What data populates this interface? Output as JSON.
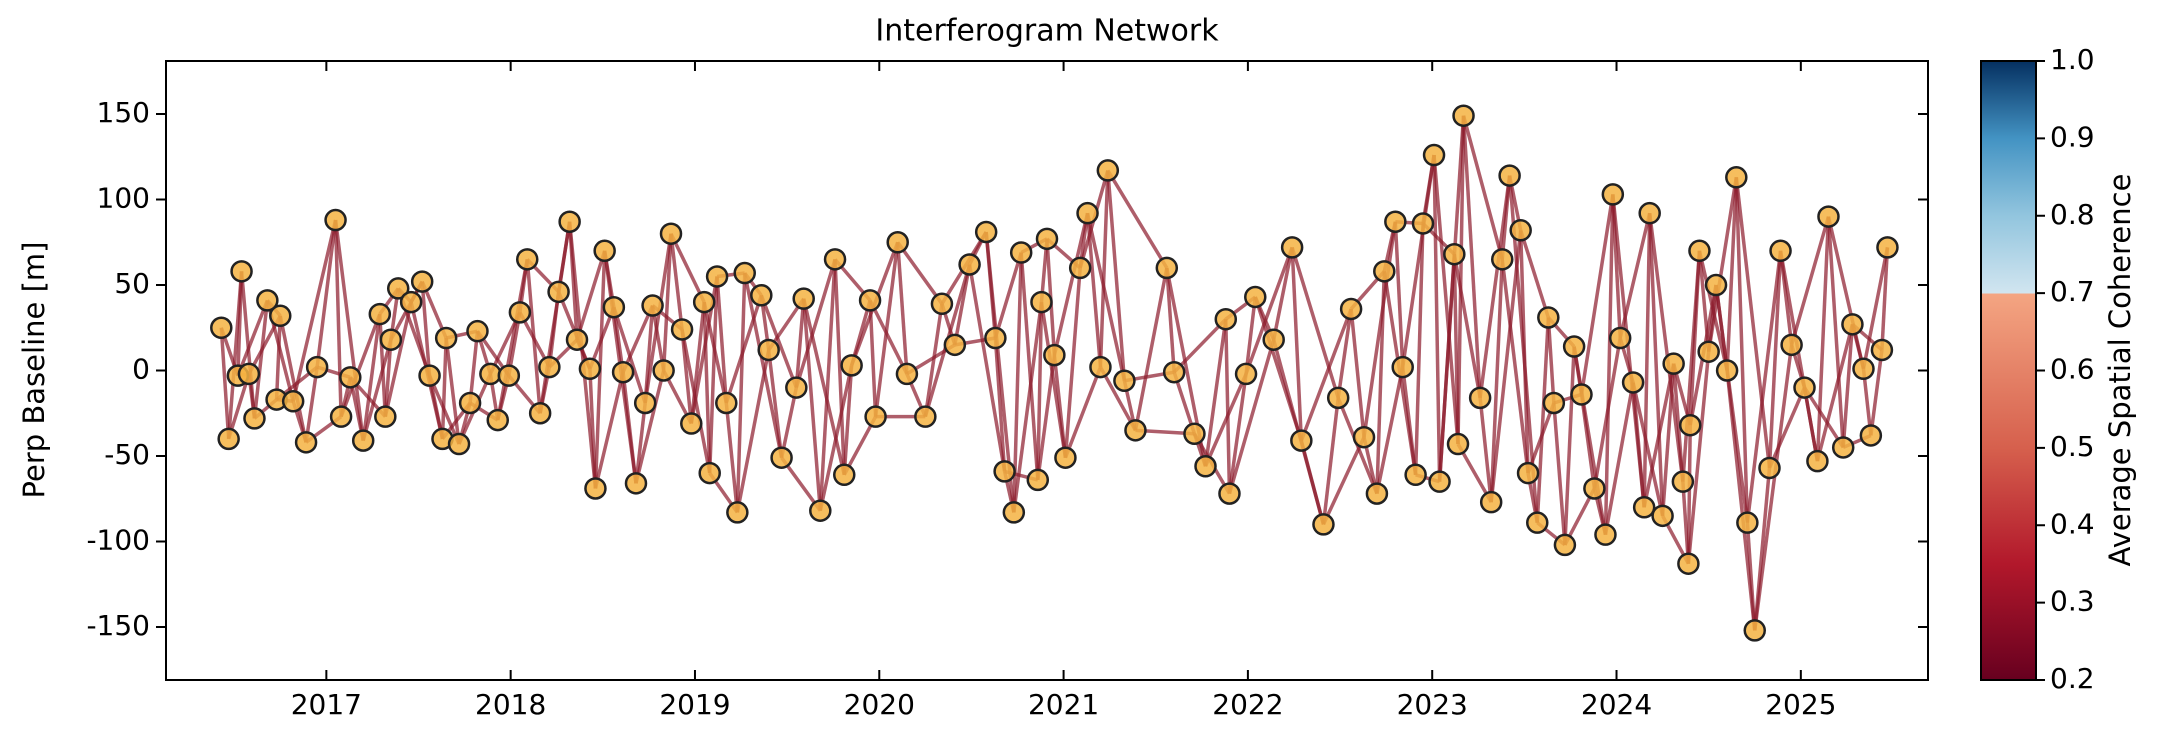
{
  "chart_data": {
    "type": "network",
    "title": "Interferogram Network",
    "ylabel": "Perp Baseline [m]",
    "xlim": [
      2016.13,
      2025.69
    ],
    "xticks": [
      2017,
      2018,
      2019,
      2020,
      2021,
      2022,
      2023,
      2024,
      2025
    ],
    "ylim": [
      -181,
      181
    ],
    "yticks": [
      -150,
      -100,
      -50,
      0,
      50,
      100,
      150
    ],
    "node_color": "#f5b342",
    "edge_color": "#8b1a2b",
    "x": [
      2016.43,
      2016.47,
      2016.54,
      2016.52,
      2016.58,
      2016.61,
      2016.68,
      2016.75,
      2016.73,
      2016.82,
      2016.89,
      2016.95,
      2017.05,
      2017.08,
      2017.13,
      2017.2,
      2017.29,
      2017.32,
      2017.35,
      2017.39,
      2017.46,
      2017.52,
      2017.56,
      2017.63,
      2017.65,
      2017.72,
      2017.78,
      2017.82,
      2017.89,
      2017.93,
      2017.99,
      2018.05,
      2018.09,
      2018.16,
      2018.21,
      2018.26,
      2018.32,
      2018.36,
      2018.43,
      2018.46,
      2018.51,
      2018.56,
      2018.61,
      2018.68,
      2018.73,
      2018.77,
      2018.83,
      2018.87,
      2018.93,
      2018.98,
      2019.05,
      2019.08,
      2019.12,
      2019.17,
      2019.23,
      2019.27,
      2019.36,
      2019.4,
      2019.47,
      2019.55,
      2019.59,
      2019.68,
      2019.76,
      2019.81,
      2019.85,
      2019.95,
      2019.98,
      2020.1,
      2020.15,
      2020.25,
      2020.34,
      2020.41,
      2020.49,
      2020.58,
      2020.63,
      2020.68,
      2020.73,
      2020.77,
      2020.86,
      2020.88,
      2020.91,
      2020.95,
      2021.01,
      2021.09,
      2021.13,
      2021.2,
      2021.24,
      2021.33,
      2021.39,
      2021.56,
      2021.6,
      2021.71,
      2021.77,
      2021.88,
      2021.9,
      2021.99,
      2022.04,
      2022.14,
      2022.24,
      2022.29,
      2022.41,
      2022.49,
      2022.56,
      2022.63,
      2022.7,
      2022.74,
      2022.8,
      2022.84,
      2022.91,
      2022.95,
      2023.01,
      2023.04,
      2023.12,
      2023.14,
      2023.17,
      2023.26,
      2023.32,
      2023.38,
      2023.42,
      2023.48,
      2023.52,
      2023.57,
      2023.63,
      2023.66,
      2023.72,
      2023.77,
      2023.81,
      2023.88,
      2023.94,
      2023.98,
      2024.02,
      2024.09,
      2024.15,
      2024.18,
      2024.25,
      2024.31,
      2024.36,
      2024.39,
      2024.4,
      2024.45,
      2024.5,
      2024.54,
      2024.6,
      2024.65,
      2024.71,
      2024.75,
      2024.83,
      2024.89,
      2024.95,
      2025.02,
      2025.09,
      2025.15,
      2025.23,
      2025.28,
      2025.34,
      2025.38,
      2025.44,
      2025.47
    ],
    "values": [
      25,
      -40,
      58,
      -3,
      -2,
      -28,
      41,
      32,
      -17,
      -18,
      -42,
      2,
      88,
      -27,
      -4,
      -41,
      33,
      -27,
      18,
      48,
      40,
      52,
      -3,
      -40,
      19,
      -43,
      -19,
      23,
      -2,
      -29,
      -3,
      34,
      65,
      -25,
      2,
      46,
      87,
      18,
      1,
      -69,
      70,
      37,
      -1,
      -66,
      -19,
      38,
      0,
      80,
      24,
      -31,
      40,
      -60,
      55,
      -19,
      -83,
      57,
      44,
      12,
      -51,
      -10,
      42,
      -82,
      65,
      -61,
      3,
      41,
      -27,
      75,
      -2,
      -27,
      39,
      15,
      62,
      81,
      19,
      -59,
      -83,
      69,
      -64,
      40,
      77,
      9,
      -51,
      60,
      92,
      2,
      117,
      -6,
      -35,
      60,
      -1,
      -37,
      -56,
      30,
      -72,
      -2,
      43,
      18,
      72,
      -41,
      -90,
      -16,
      36,
      -39,
      -72,
      58,
      87,
      2,
      -61,
      86,
      126,
      -65,
      68,
      -43,
      149,
      -16,
      -77,
      65,
      114,
      82,
      -60,
      -89,
      31,
      -19,
      -102,
      14,
      -14,
      -69,
      -96,
      103,
      19,
      -7,
      -80,
      92,
      -85,
      4,
      -65,
      -113,
      -32,
      70,
      11,
      50,
      0,
      113,
      -89,
      -152,
      -57,
      70,
      15,
      -10,
      -53,
      90,
      -45,
      27,
      1,
      -38,
      12,
      72
    ],
    "edges": [
      [
        0,
        1
      ],
      [
        0,
        3
      ],
      [
        1,
        2
      ],
      [
        1,
        4
      ],
      [
        2,
        3
      ],
      [
        2,
        5
      ],
      [
        3,
        4
      ],
      [
        3,
        6
      ],
      [
        4,
        5
      ],
      [
        4,
        7
      ],
      [
        5,
        6
      ],
      [
        5,
        8
      ],
      [
        6,
        7
      ],
      [
        6,
        9
      ],
      [
        7,
        8
      ],
      [
        7,
        10
      ],
      [
        8,
        9
      ],
      [
        8,
        11
      ],
      [
        9,
        10
      ],
      [
        9,
        12
      ],
      [
        10,
        11
      ],
      [
        10,
        13
      ],
      [
        11,
        12
      ],
      [
        11,
        14
      ],
      [
        12,
        13
      ],
      [
        12,
        15
      ],
      [
        13,
        14
      ],
      [
        13,
        16
      ],
      [
        14,
        15
      ],
      [
        14,
        17
      ],
      [
        15,
        16
      ],
      [
        15,
        18
      ],
      [
        16,
        17
      ],
      [
        16,
        19
      ],
      [
        17,
        18
      ],
      [
        17,
        20
      ],
      [
        18,
        19
      ],
      [
        18,
        21
      ],
      [
        19,
        20
      ],
      [
        19,
        22
      ],
      [
        20,
        21
      ],
      [
        20,
        23
      ],
      [
        21,
        22
      ],
      [
        21,
        24
      ],
      [
        22,
        23
      ],
      [
        22,
        25
      ],
      [
        23,
        24
      ],
      [
        23,
        26
      ],
      [
        24,
        25
      ],
      [
        24,
        27
      ],
      [
        25,
        26
      ],
      [
        25,
        28
      ],
      [
        26,
        27
      ],
      [
        26,
        29
      ],
      [
        27,
        28
      ],
      [
        27,
        30
      ],
      [
        28,
        29
      ],
      [
        28,
        31
      ],
      [
        29,
        30
      ],
      [
        29,
        32
      ],
      [
        30,
        31
      ],
      [
        30,
        33
      ],
      [
        31,
        32
      ],
      [
        31,
        34
      ],
      [
        32,
        33
      ],
      [
        32,
        35
      ],
      [
        33,
        34
      ],
      [
        33,
        36
      ],
      [
        34,
        35
      ],
      [
        34,
        37
      ],
      [
        35,
        36
      ],
      [
        35,
        38
      ],
      [
        36,
        37
      ],
      [
        36,
        39
      ],
      [
        37,
        38
      ],
      [
        37,
        40
      ],
      [
        38,
        39
      ],
      [
        38,
        41
      ],
      [
        39,
        40
      ],
      [
        39,
        42
      ],
      [
        40,
        41
      ],
      [
        40,
        43
      ],
      [
        41,
        42
      ],
      [
        41,
        44
      ],
      [
        42,
        43
      ],
      [
        42,
        45
      ],
      [
        43,
        44
      ],
      [
        43,
        46
      ],
      [
        44,
        45
      ],
      [
        44,
        47
      ],
      [
        45,
        46
      ],
      [
        45,
        48
      ],
      [
        46,
        47
      ],
      [
        46,
        49
      ],
      [
        47,
        48
      ],
      [
        47,
        50
      ],
      [
        48,
        49
      ],
      [
        48,
        51
      ],
      [
        49,
        50
      ],
      [
        49,
        52
      ],
      [
        50,
        51
      ],
      [
        50,
        53
      ],
      [
        51,
        52
      ],
      [
        51,
        54
      ],
      [
        52,
        53
      ],
      [
        52,
        55
      ],
      [
        53,
        54
      ],
      [
        53,
        56
      ],
      [
        54,
        55
      ],
      [
        54,
        57
      ],
      [
        55,
        56
      ],
      [
        55,
        58
      ],
      [
        56,
        57
      ],
      [
        56,
        59
      ],
      [
        57,
        58
      ],
      [
        57,
        60
      ],
      [
        58,
        59
      ],
      [
        58,
        61
      ],
      [
        59,
        60
      ],
      [
        59,
        62
      ],
      [
        60,
        61
      ],
      [
        60,
        63
      ],
      [
        61,
        62
      ],
      [
        61,
        64
      ],
      [
        62,
        63
      ],
      [
        62,
        65
      ],
      [
        63,
        64
      ],
      [
        63,
        66
      ],
      [
        64,
        65
      ],
      [
        64,
        67
      ],
      [
        65,
        66
      ],
      [
        65,
        68
      ],
      [
        66,
        67
      ],
      [
        66,
        69
      ],
      [
        67,
        68
      ],
      [
        67,
        70
      ],
      [
        68,
        69
      ],
      [
        68,
        71
      ],
      [
        69,
        70
      ],
      [
        69,
        72
      ],
      [
        70,
        71
      ],
      [
        70,
        73
      ],
      [
        71,
        72
      ],
      [
        71,
        74
      ],
      [
        72,
        73
      ],
      [
        72,
        75
      ],
      [
        73,
        74
      ],
      [
        73,
        76
      ],
      [
        74,
        75
      ],
      [
        74,
        77
      ],
      [
        75,
        76
      ],
      [
        75,
        78
      ],
      [
        76,
        77
      ],
      [
        76,
        79
      ],
      [
        77,
        78
      ],
      [
        77,
        80
      ],
      [
        78,
        79
      ],
      [
        78,
        81
      ],
      [
        79,
        80
      ],
      [
        79,
        82
      ],
      [
        80,
        81
      ],
      [
        80,
        83
      ],
      [
        81,
        82
      ],
      [
        81,
        84
      ],
      [
        82,
        83
      ],
      [
        82,
        85
      ],
      [
        83,
        84
      ],
      [
        83,
        86
      ],
      [
        84,
        85
      ],
      [
        84,
        87
      ],
      [
        85,
        86
      ],
      [
        85,
        88
      ],
      [
        86,
        87
      ],
      [
        86,
        89
      ],
      [
        87,
        88
      ],
      [
        87,
        90
      ],
      [
        88,
        89
      ],
      [
        88,
        91
      ],
      [
        89,
        90
      ],
      [
        89,
        92
      ],
      [
        90,
        91
      ],
      [
        90,
        93
      ],
      [
        91,
        92
      ],
      [
        91,
        94
      ],
      [
        92,
        93
      ],
      [
        92,
        95
      ],
      [
        93,
        94
      ],
      [
        93,
        96
      ],
      [
        94,
        95
      ],
      [
        94,
        97
      ],
      [
        95,
        96
      ],
      [
        95,
        98
      ],
      [
        96,
        97
      ],
      [
        96,
        99
      ],
      [
        97,
        98
      ],
      [
        97,
        100
      ],
      [
        98,
        99
      ],
      [
        98,
        101
      ],
      [
        99,
        100
      ],
      [
        99,
        102
      ],
      [
        100,
        101
      ],
      [
        100,
        103
      ],
      [
        101,
        102
      ],
      [
        101,
        104
      ],
      [
        102,
        103
      ],
      [
        102,
        105
      ],
      [
        103,
        104
      ],
      [
        103,
        106
      ],
      [
        104,
        105
      ],
      [
        104,
        107
      ],
      [
        105,
        106
      ],
      [
        105,
        108
      ],
      [
        106,
        107
      ],
      [
        106,
        109
      ],
      [
        107,
        108
      ],
      [
        107,
        110
      ],
      [
        108,
        109
      ],
      [
        108,
        111
      ],
      [
        109,
        110
      ],
      [
        109,
        112
      ],
      [
        110,
        111
      ],
      [
        110,
        113
      ],
      [
        111,
        112
      ],
      [
        111,
        114
      ],
      [
        112,
        113
      ],
      [
        112,
        115
      ],
      [
        113,
        114
      ],
      [
        113,
        116
      ],
      [
        114,
        115
      ],
      [
        114,
        117
      ],
      [
        115,
        116
      ],
      [
        115,
        118
      ],
      [
        116,
        117
      ],
      [
        116,
        119
      ],
      [
        117,
        118
      ],
      [
        117,
        120
      ],
      [
        118,
        119
      ],
      [
        118,
        121
      ],
      [
        119,
        120
      ],
      [
        119,
        122
      ],
      [
        120,
        121
      ],
      [
        120,
        123
      ],
      [
        121,
        122
      ],
      [
        121,
        124
      ],
      [
        122,
        123
      ],
      [
        122,
        125
      ],
      [
        123,
        124
      ],
      [
        123,
        126
      ],
      [
        124,
        125
      ],
      [
        124,
        127
      ],
      [
        125,
        126
      ],
      [
        125,
        128
      ],
      [
        126,
        127
      ],
      [
        126,
        129
      ],
      [
        127,
        128
      ],
      [
        127,
        130
      ],
      [
        128,
        129
      ],
      [
        128,
        131
      ],
      [
        129,
        130
      ],
      [
        129,
        132
      ],
      [
        130,
        131
      ],
      [
        130,
        133
      ],
      [
        131,
        132
      ],
      [
        131,
        134
      ],
      [
        132,
        133
      ],
      [
        132,
        135
      ],
      [
        133,
        134
      ],
      [
        133,
        136
      ],
      [
        134,
        135
      ],
      [
        134,
        137
      ],
      [
        135,
        136
      ],
      [
        135,
        138
      ],
      [
        136,
        137
      ],
      [
        136,
        139
      ],
      [
        137,
        138
      ],
      [
        137,
        140
      ],
      [
        138,
        139
      ],
      [
        138,
        141
      ],
      [
        139,
        140
      ],
      [
        139,
        142
      ],
      [
        140,
        141
      ],
      [
        140,
        143
      ],
      [
        141,
        142
      ],
      [
        141,
        144
      ],
      [
        142,
        143
      ],
      [
        142,
        145
      ],
      [
        143,
        144
      ],
      [
        143,
        146
      ],
      [
        144,
        145
      ],
      [
        144,
        147
      ],
      [
        145,
        146
      ],
      [
        145,
        148
      ],
      [
        146,
        147
      ],
      [
        146,
        149
      ],
      [
        147,
        148
      ],
      [
        147,
        150
      ],
      [
        148,
        149
      ],
      [
        148,
        151
      ],
      [
        149,
        150
      ],
      [
        149,
        152
      ],
      [
        150,
        151
      ],
      [
        150,
        153
      ],
      [
        151,
        152
      ],
      [
        151,
        154
      ],
      [
        152,
        153
      ],
      [
        152,
        155
      ],
      [
        153,
        154
      ],
      [
        153,
        156
      ],
      [
        154,
        155
      ],
      [
        154,
        157
      ],
      [
        155,
        156
      ],
      [
        156,
        157
      ]
    ],
    "colorbar": {
      "label": "Average Spatial Coherence",
      "lim": [
        0.2,
        1
      ],
      "ticks": [
        0.2,
        0.3,
        0.4,
        0.5,
        0.6,
        {
          "value": 0.7,
          "label": "0.7"
        },
        0.8,
        0.9,
        {
          "value": 1,
          "label": "1.0"
        }
      ],
      "stops": [
        {
          "value": 0.2,
          "color": "#67001f"
        },
        {
          "value": 0.35,
          "color": "#b2182b"
        },
        {
          "value": 0.5,
          "color": "#d6604d"
        },
        {
          "value": 0.699,
          "color": "#f4a582"
        },
        {
          "value": 0.7,
          "color": "#d1e5f0"
        },
        {
          "value": 0.8,
          "color": "#92c5de"
        },
        {
          "value": 0.9,
          "color": "#4393c3"
        },
        {
          "value": 1,
          "color": "#053061"
        }
      ]
    }
  }
}
